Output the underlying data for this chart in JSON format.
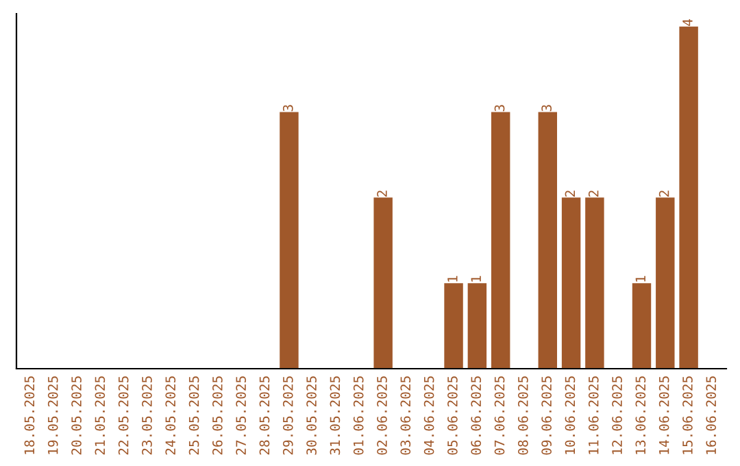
{
  "chart_data": {
    "type": "bar",
    "categories": [
      "18.05.2025",
      "19.05.2025",
      "20.05.2025",
      "21.05.2025",
      "22.05.2025",
      "23.05.2025",
      "24.05.2025",
      "25.05.2025",
      "26.05.2025",
      "27.05.2025",
      "28.05.2025",
      "29.05.2025",
      "30.05.2025",
      "31.05.2025",
      "01.06.2025",
      "02.06.2025",
      "03.06.2025",
      "04.06.2025",
      "05.06.2025",
      "06.06.2025",
      "07.06.2025",
      "08.06.2025",
      "09.06.2025",
      "10.06.2025",
      "11.06.2025",
      "12.06.2025",
      "13.06.2025",
      "14.06.2025",
      "15.06.2025",
      "16.06.2025"
    ],
    "values": [
      0,
      0,
      0,
      0,
      0,
      0,
      0,
      0,
      0,
      0,
      0,
      3,
      0,
      0,
      0,
      2,
      0,
      0,
      1,
      1,
      3,
      0,
      3,
      2,
      2,
      0,
      1,
      2,
      4,
      0
    ],
    "value_labels": [
      null,
      null,
      null,
      null,
      null,
      null,
      null,
      null,
      null,
      null,
      null,
      "3",
      null,
      null,
      null,
      "2",
      null,
      null,
      "1",
      "1",
      "3",
      null,
      "3",
      "2",
      "2",
      null,
      "1",
      "2",
      "4",
      null
    ],
    "color": "#a0582a",
    "ylim": [
      0,
      4.15
    ],
    "tick_labels": "x",
    "grid": false,
    "legend": false
  }
}
